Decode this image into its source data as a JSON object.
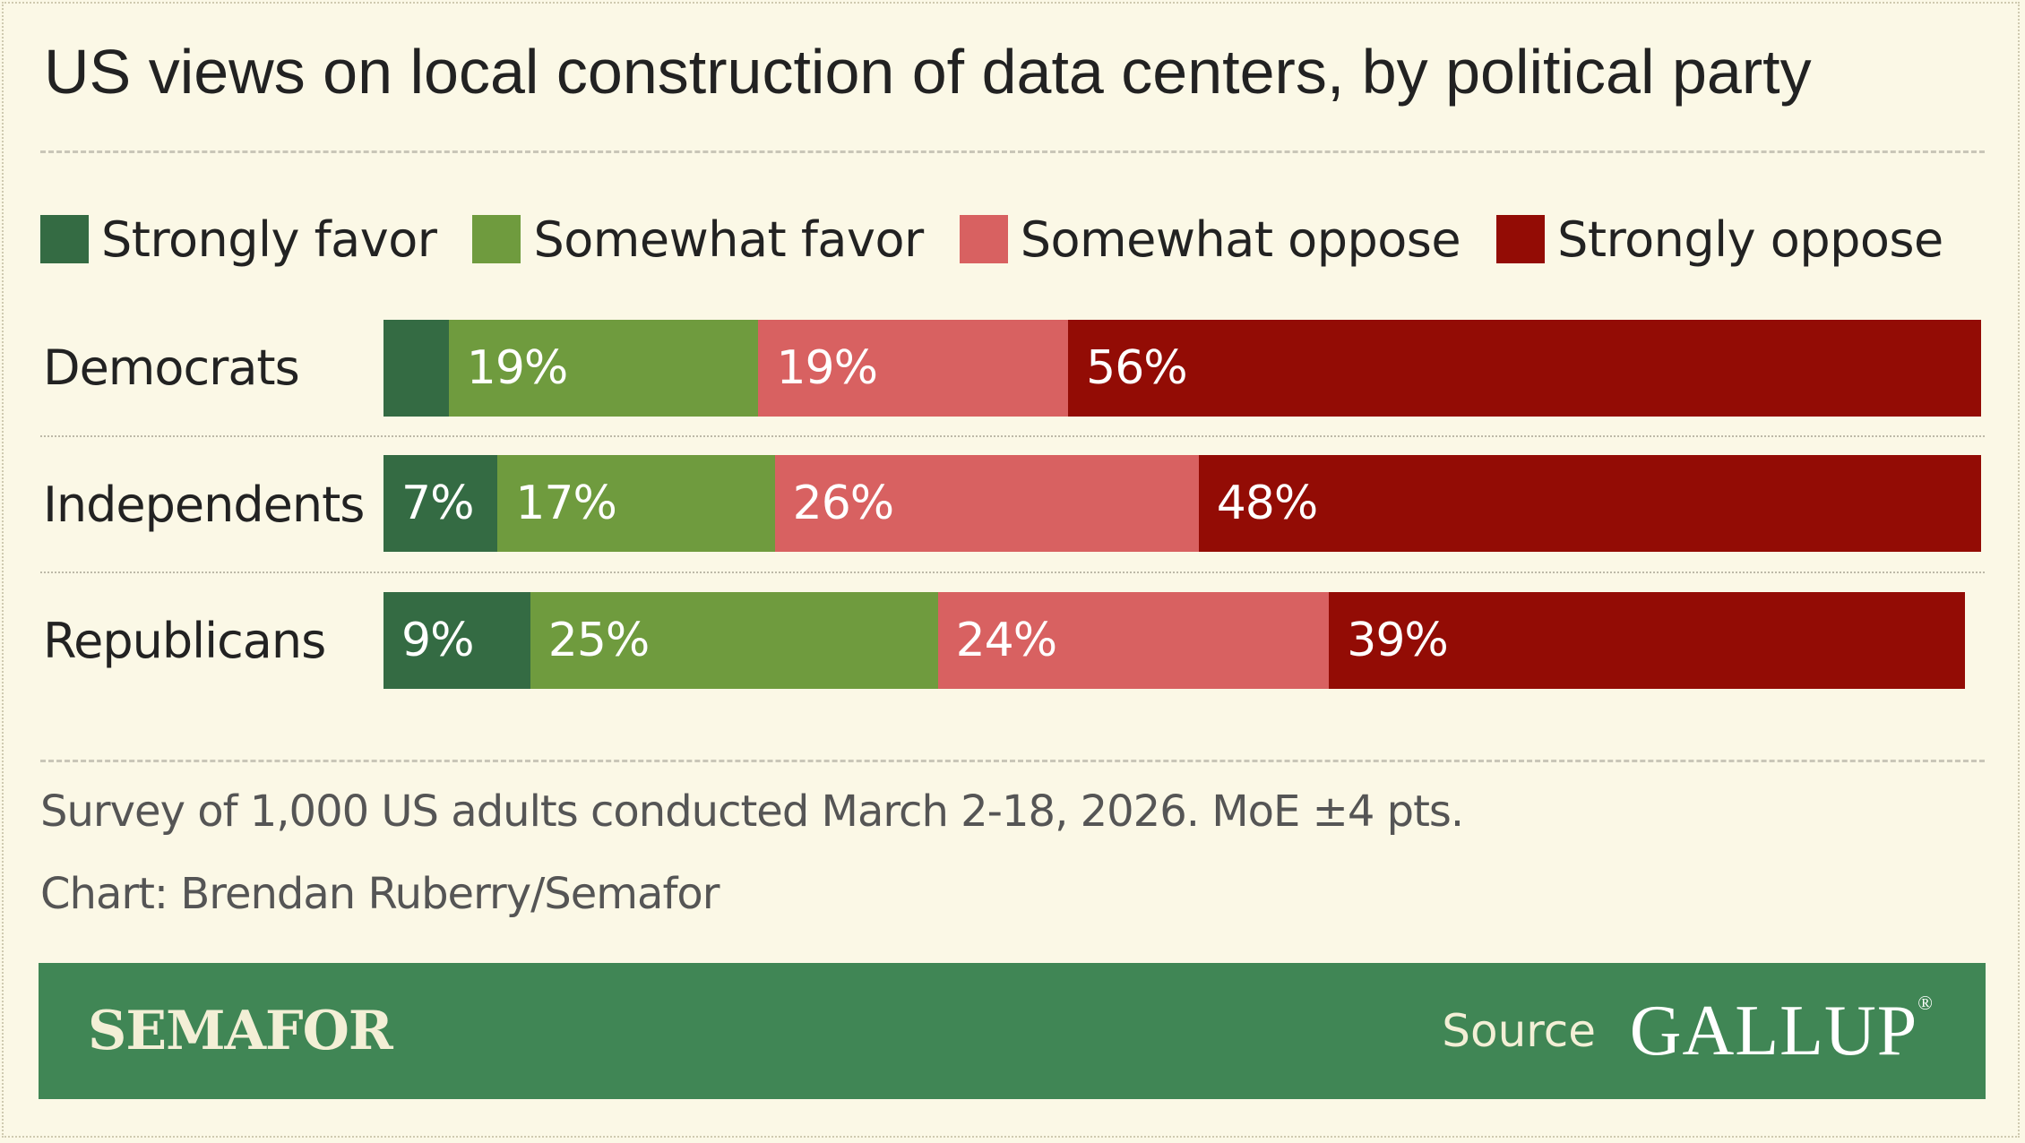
{
  "chart_data": {
    "type": "bar",
    "orientation": "horizontal",
    "stacked": true,
    "title": "US views on local construction of data centers, by political party",
    "categories": [
      "Democrats",
      "Independents",
      "Republicans"
    ],
    "series": [
      {
        "name": "Strongly favor",
        "color": "#346b43",
        "values": [
          4,
          7,
          9
        ],
        "labels": [
          "",
          "7%",
          "9%"
        ]
      },
      {
        "name": "Somewhat favor",
        "color": "#6f9b3e",
        "values": [
          19,
          17,
          25
        ],
        "labels": [
          "19%",
          "17%",
          "25%"
        ]
      },
      {
        "name": "Somewhat oppose",
        "color": "#d86161",
        "values": [
          19,
          26,
          24
        ],
        "labels": [
          "19%",
          "26%",
          "24%"
        ]
      },
      {
        "name": "Strongly oppose",
        "color": "#930c05",
        "values": [
          56,
          48,
          39
        ],
        "labels": [
          "56%",
          "48%",
          "39%"
        ]
      }
    ],
    "xlim": [
      0,
      98
    ],
    "legend": "top",
    "grid": false
  },
  "note": "Survey of 1,000 US adults conducted March 2-18, 2026. MoE ±4 pts.",
  "credit": "Chart: Brendan Ruberry/Semafor",
  "footer": {
    "brand": "SEMAFOR",
    "source_label": "Source",
    "source_org": "GALLUP",
    "source_mark": "®",
    "background": "#408655"
  }
}
